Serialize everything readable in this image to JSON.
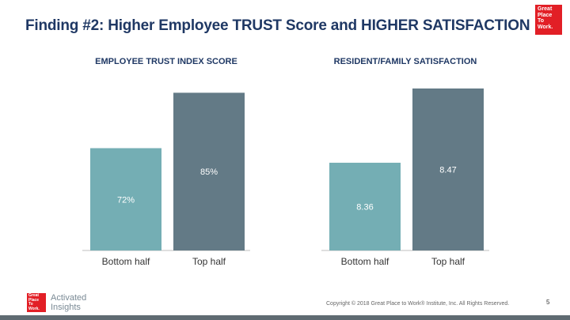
{
  "title": "Finding #2: Higher Employee TRUST Score and HIGHER SATISFACTION",
  "logo": {
    "lines": [
      "Great",
      "Place",
      "To",
      "Work."
    ]
  },
  "colors": {
    "bottom": "#74aeb4",
    "top": "#637a86",
    "title": "#1f3864"
  },
  "chart_data": [
    {
      "type": "bar",
      "title": "EMPLOYEE TRUST INDEX SCORE",
      "categories": [
        "Bottom half",
        "Top half"
      ],
      "values": [
        72,
        85
      ],
      "data_labels": [
        "72%",
        "85%"
      ],
      "ylim": [
        48,
        86
      ]
    },
    {
      "type": "bar",
      "title": "RESIDENT/FAMILY SATISFACTION",
      "categories": [
        "Bottom half",
        "Top half"
      ],
      "values": [
        8.36,
        8.47
      ],
      "data_labels": [
        "8.36",
        "8.47"
      ],
      "ylim": [
        8.23,
        8.47
      ]
    }
  ],
  "footer": {
    "logo_lines": [
      "Great",
      "Place",
      "To",
      "Work."
    ],
    "brand_lines": [
      "Activated",
      "Insights"
    ],
    "copyright": "Copyright © 2018 Great Place to Work® Institute, Inc. All Rights Reserved.",
    "page": "5"
  }
}
